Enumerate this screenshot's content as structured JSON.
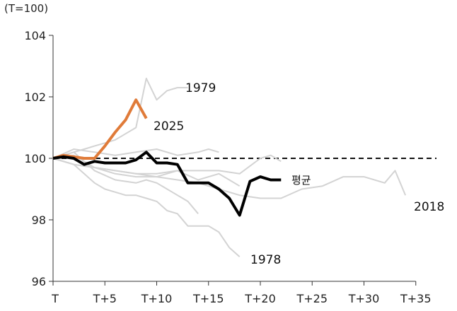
{
  "chart_data": {
    "type": "line",
    "unit_label": "(T=100)",
    "y_ticks": [
      "104",
      "102",
      "100",
      "98",
      "96"
    ],
    "x_ticks": [
      "T",
      "T+5",
      "T+10",
      "T+15",
      "T+20",
      "T+25",
      "T+30",
      "T+35"
    ],
    "xlim": [
      0,
      35
    ],
    "ylim": [
      96,
      104
    ],
    "reference_line": 100,
    "colors": {
      "past": "#d3d3d3",
      "2025": "#e07b39",
      "avg": "#000000",
      "axis": "#333333"
    },
    "series": [
      {
        "name": "1979",
        "label": "1979",
        "style": "past",
        "x": [
          0,
          1,
          2,
          3,
          4,
          5,
          6,
          7,
          8,
          9,
          10,
          11,
          12,
          13
        ],
        "y": [
          100,
          100.1,
          100.2,
          100.3,
          100.4,
          100.5,
          100.6,
          100.8,
          101.0,
          102.6,
          101.9,
          102.2,
          102.3,
          102.3
        ]
      },
      {
        "name": "1978",
        "label": "1978",
        "style": "past",
        "x": [
          0,
          1,
          2,
          3,
          4,
          5,
          6,
          7,
          8,
          9,
          10,
          11,
          12,
          13,
          14,
          15,
          16,
          17,
          18
        ],
        "y": [
          100,
          99.9,
          99.8,
          99.5,
          99.2,
          99.0,
          98.9,
          98.8,
          98.8,
          98.7,
          98.6,
          98.3,
          98.2,
          97.8,
          97.8,
          97.8,
          97.6,
          97.1,
          96.8
        ]
      },
      {
        "name": "2018",
        "label": "2018",
        "style": "past",
        "x": [
          0,
          2,
          4,
          6,
          8,
          10,
          12,
          14,
          16,
          18,
          20,
          22,
          24,
          26,
          28,
          30,
          32,
          33,
          34
        ],
        "y": [
          100,
          99.8,
          99.7,
          99.6,
          99.5,
          99.4,
          99.3,
          99.2,
          99.0,
          98.8,
          98.7,
          98.7,
          99.0,
          99.1,
          99.4,
          99.4,
          99.2,
          99.6,
          98.8
        ]
      },
      {
        "name": "",
        "label": "",
        "style": "past",
        "x": [
          0,
          2,
          4,
          6,
          8,
          10,
          12,
          14,
          15,
          16
        ],
        "y": [
          100,
          100.3,
          100.2,
          100.1,
          100.2,
          100.3,
          100.1,
          100.2,
          100.3,
          100.2
        ]
      },
      {
        "name": "",
        "label": "",
        "style": "past",
        "x": [
          0,
          2,
          4,
          6,
          8,
          10,
          12,
          14,
          16,
          18,
          20,
          21,
          22
        ],
        "y": [
          100,
          99.8,
          99.7,
          99.6,
          99.5,
          99.5,
          99.6,
          99.6,
          99.6,
          99.5,
          100.0,
          100.1,
          99.9
        ]
      },
      {
        "name": "",
        "label": "",
        "style": "past",
        "x": [
          0,
          2,
          4,
          6,
          8,
          9,
          10,
          11,
          12,
          13,
          14
        ],
        "y": [
          100,
          100.2,
          99.6,
          99.3,
          99.2,
          99.3,
          99.2,
          99.0,
          98.8,
          98.6,
          98.2
        ]
      },
      {
        "name": "",
        "label": "",
        "style": "past",
        "x": [
          0,
          2,
          4,
          6,
          8,
          10,
          12,
          14,
          16,
          17,
          18
        ],
        "y": [
          100,
          100.1,
          99.7,
          99.5,
          99.4,
          99.4,
          99.6,
          99.3,
          99.5,
          99.3,
          99.1
        ]
      },
      {
        "name": "2025",
        "label": "2025",
        "style": "2025",
        "x": [
          0,
          1,
          2,
          3,
          4,
          5,
          6,
          7,
          8,
          9
        ],
        "y": [
          100,
          100.1,
          100.05,
          100.0,
          100.0,
          100.4,
          100.85,
          101.25,
          101.9,
          101.3
        ]
      },
      {
        "name": "평균",
        "label": "평균",
        "style": "avg",
        "x": [
          0,
          1,
          2,
          3,
          4,
          5,
          6,
          7,
          8,
          9,
          10,
          11,
          12,
          13,
          14,
          15,
          16,
          17,
          18,
          19,
          20,
          21,
          22
        ],
        "y": [
          100,
          100.05,
          100.0,
          99.8,
          99.9,
          99.85,
          99.85,
          99.85,
          99.95,
          100.2,
          99.85,
          99.85,
          99.8,
          99.2,
          99.2,
          99.2,
          99.0,
          98.7,
          98.15,
          99.25,
          99.4,
          99.3,
          99.3
        ]
      }
    ]
  }
}
